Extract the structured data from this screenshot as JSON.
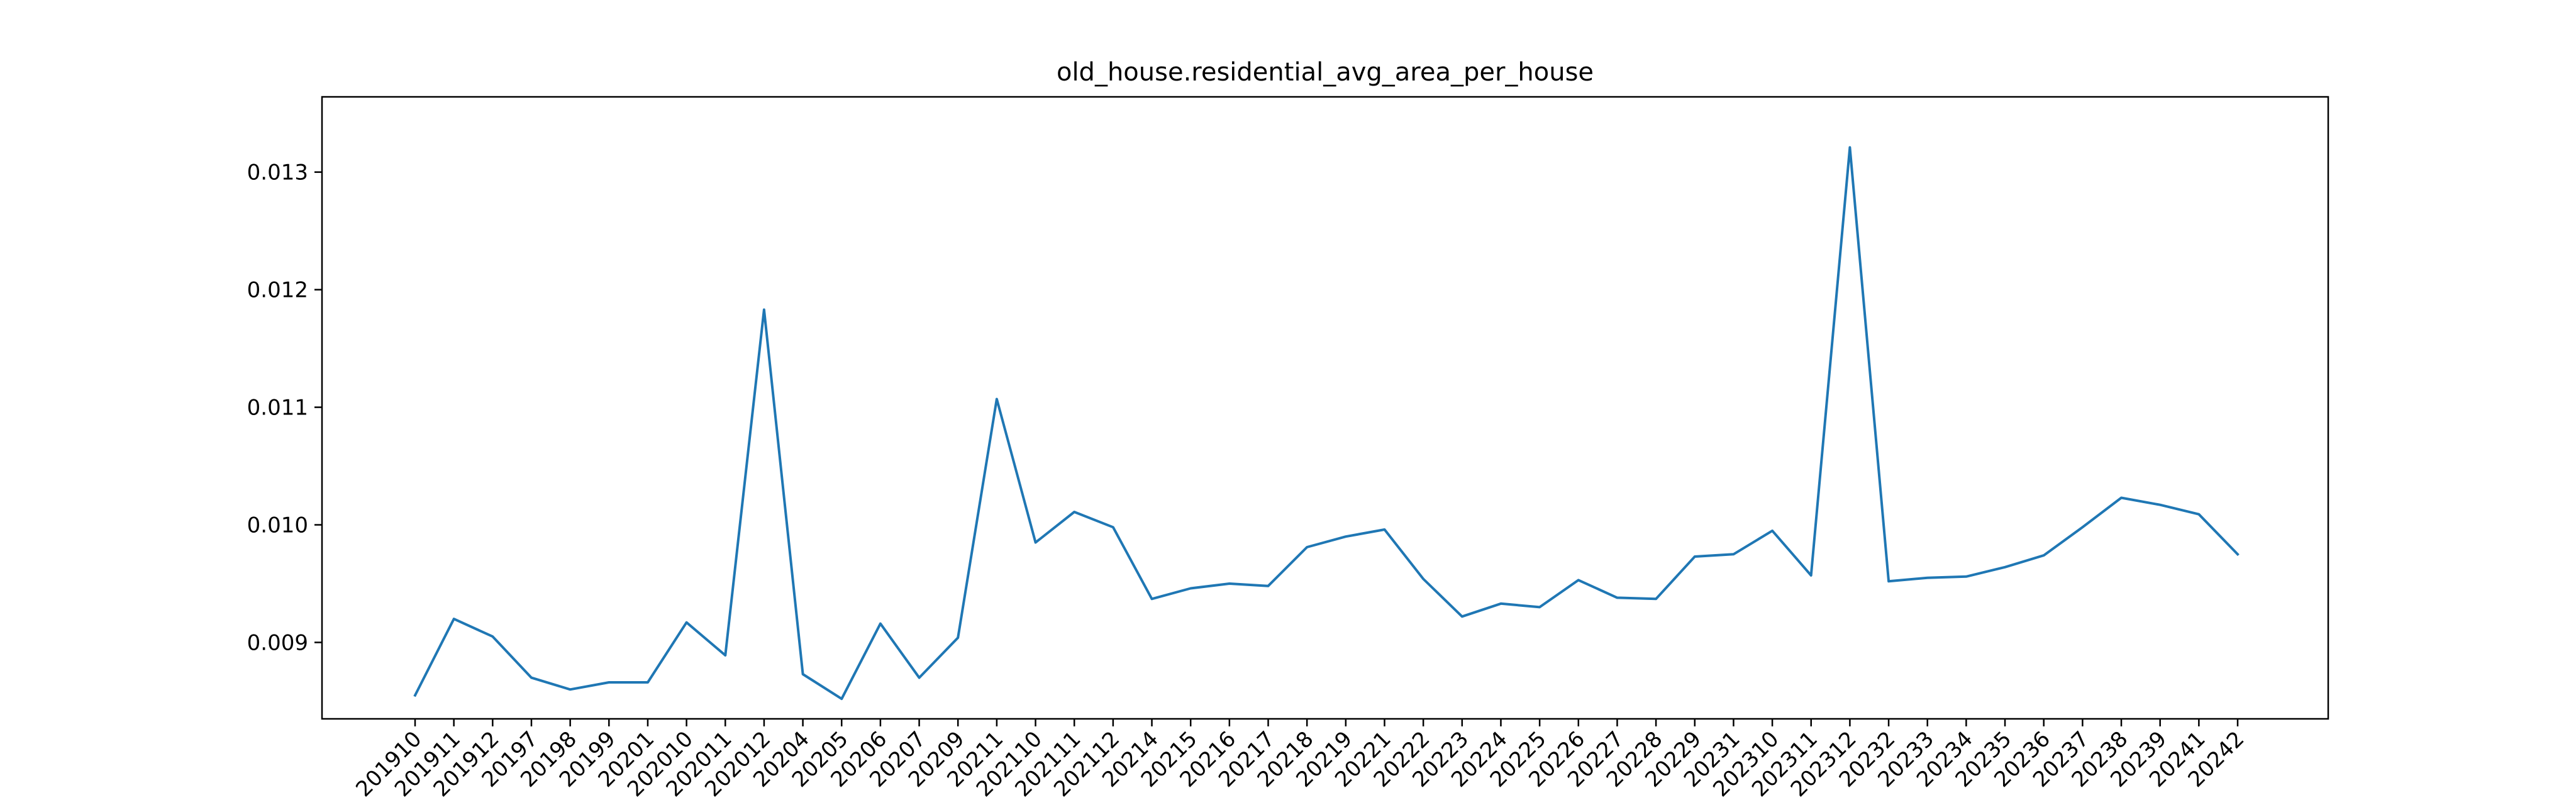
{
  "chart_data": {
    "type": "line",
    "title": "old_house.residential_avg_area_per_house",
    "xlabel": "",
    "ylabel": "",
    "x": [
      "201910",
      "201911",
      "201912",
      "20197",
      "20198",
      "20199",
      "20201",
      "202010",
      "202011",
      "202012",
      "20204",
      "20205",
      "20206",
      "20207",
      "20209",
      "20211",
      "202110",
      "202111",
      "202112",
      "20214",
      "20215",
      "20216",
      "20217",
      "20218",
      "20219",
      "20221",
      "20222",
      "20223",
      "20224",
      "20225",
      "20226",
      "20227",
      "20228",
      "20229",
      "20231",
      "202310",
      "202311",
      "202312",
      "20232",
      "20233",
      "20234",
      "20235",
      "20236",
      "20237",
      "20238",
      "20239",
      "20241",
      "20242"
    ],
    "series": [
      {
        "color": "#1f77b4",
        "values": [
          0.00855,
          0.0092,
          0.00905,
          0.0087,
          0.0086,
          0.00866,
          0.00866,
          0.00917,
          0.00889,
          0.01183,
          0.00873,
          0.00852,
          0.00916,
          0.0087,
          0.00904,
          0.01107,
          0.00985,
          0.01011,
          0.00998,
          0.00937,
          0.00946,
          0.0095,
          0.00948,
          0.00981,
          0.0099,
          0.00996,
          0.00954,
          0.00922,
          0.00933,
          0.0093,
          0.00953,
          0.00938,
          0.00937,
          0.00973,
          0.00975,
          0.00995,
          0.00957,
          0.01321,
          0.00952,
          0.00955,
          0.00956,
          0.00964,
          0.00974,
          0.00998,
          0.01023,
          0.01017,
          0.01009,
          0.00975
        ]
      }
    ],
    "yticks": [
      0.009,
      0.01,
      0.011,
      0.012,
      0.013
    ],
    "ytick_labels": [
      "0.009",
      "0.010",
      "0.011",
      "0.012",
      "0.013"
    ],
    "ylim": [
      0.00835,
      0.01364
    ],
    "grid": false,
    "legend": false
  }
}
